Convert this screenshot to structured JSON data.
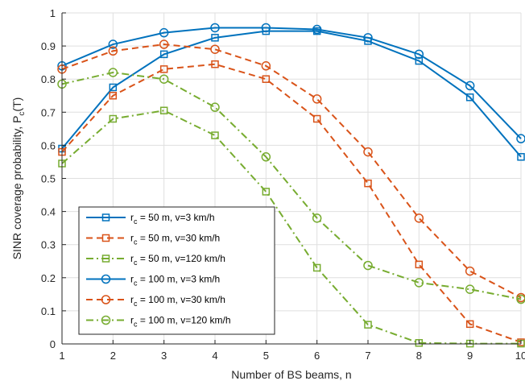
{
  "chart_data": {
    "type": "line",
    "xlabel": "Number of BS beams, n",
    "ylabel": "SINR coverage probability, P",
    "ylabel_sub": "c",
    "ylabel_suffix": "(T)",
    "xlim": [
      1,
      10
    ],
    "ylim": [
      0,
      1
    ],
    "x": [
      1,
      2,
      3,
      4,
      5,
      6,
      7,
      8,
      9,
      10
    ],
    "xticks": [
      "1",
      "2",
      "3",
      "4",
      "5",
      "6",
      "7",
      "8",
      "9",
      "10"
    ],
    "yticks": [
      "0",
      "0.1",
      "0.2",
      "0.3",
      "0.4",
      "0.5",
      "0.6",
      "0.7",
      "0.8",
      "0.9",
      "1"
    ],
    "grid": true,
    "legend_position": "lower-left",
    "series": [
      {
        "name_prefix": "r",
        "name_sub": "c",
        "name_rest": " = 50 m, v=3 km/h",
        "color": "#0072BD",
        "marker": "square",
        "dash": "solid",
        "values": [
          0.59,
          0.775,
          0.875,
          0.925,
          0.945,
          0.945,
          0.915,
          0.855,
          0.745,
          0.565
        ]
      },
      {
        "name_prefix": "r",
        "name_sub": "c",
        "name_rest": " = 50 m, v=30 km/h",
        "color": "#D95319",
        "marker": "square",
        "dash": "dashed",
        "values": [
          0.58,
          0.75,
          0.83,
          0.845,
          0.8,
          0.68,
          0.485,
          0.24,
          0.06,
          0.005
        ]
      },
      {
        "name_prefix": "r",
        "name_sub": "c",
        "name_rest": " = 50 m, v=120 km/h",
        "color": "#77AC30",
        "marker": "square",
        "dash": "dashdot",
        "values": [
          0.545,
          0.68,
          0.705,
          0.63,
          0.46,
          0.23,
          0.058,
          0.003,
          0.001,
          0.001
        ]
      },
      {
        "name_prefix": "r",
        "name_sub": "c",
        "name_rest": " = 100 m, v=3 km/h",
        "color": "#0072BD",
        "marker": "circle",
        "dash": "solid",
        "values": [
          0.84,
          0.905,
          0.94,
          0.955,
          0.955,
          0.95,
          0.925,
          0.875,
          0.78,
          0.62
        ]
      },
      {
        "name_prefix": "r",
        "name_sub": "c",
        "name_rest": " = 100 m, v=30 km/h",
        "color": "#D95319",
        "marker": "circle",
        "dash": "dashed",
        "values": [
          0.83,
          0.885,
          0.905,
          0.89,
          0.84,
          0.74,
          0.58,
          0.38,
          0.22,
          0.14
        ]
      },
      {
        "name_prefix": "r",
        "name_sub": "c",
        "name_rest": " = 100 m, v=120 km/h",
        "color": "#77AC30",
        "marker": "circle",
        "dash": "dashdot",
        "values": [
          0.785,
          0.82,
          0.8,
          0.715,
          0.565,
          0.38,
          0.237,
          0.185,
          0.165,
          0.135
        ]
      }
    ]
  }
}
